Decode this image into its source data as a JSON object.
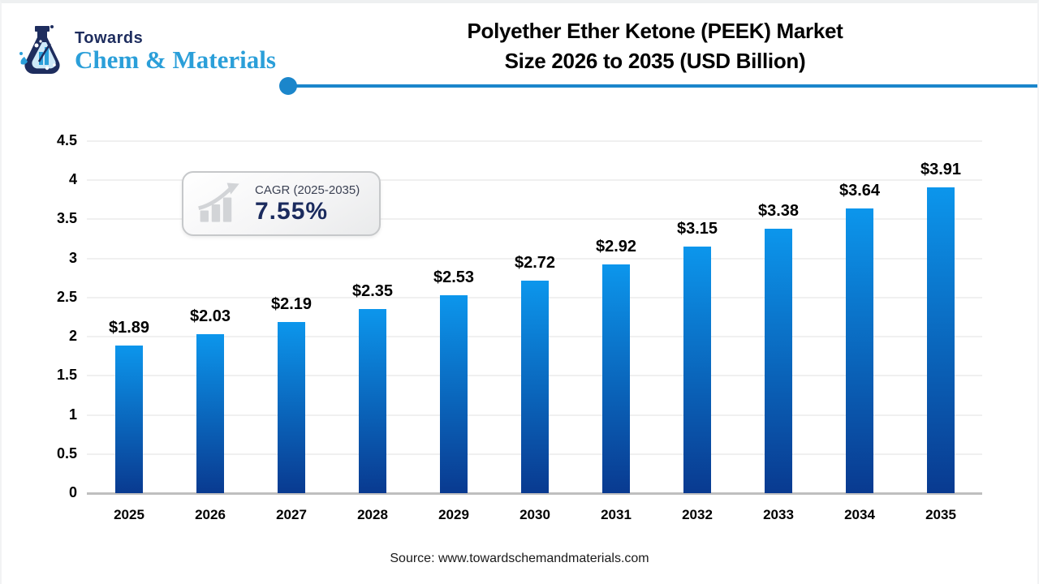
{
  "logo": {
    "line1": "Towards",
    "line2": "Chem & Materials",
    "line1_color": "#1e2d5e",
    "line2_color": "#2b9fd9",
    "flask_icon": "flask-icon"
  },
  "header": {
    "title_line1": "Polyether Ether Ketone (PEEK) Market",
    "title_line2": "Size 2026 to 2035 (USD Billion)",
    "accent_color": "#1b86cb"
  },
  "cagr_badge": {
    "icon": "growth-chart-icon",
    "label": "CAGR (2025-2035)",
    "value": "7.55%",
    "value_color": "#1b2b5e"
  },
  "chart_data": {
    "type": "bar",
    "title": "Polyether Ether Ketone (PEEK) Market Size 2026 to 2035 (USD Billion)",
    "categories": [
      "2025",
      "2026",
      "2027",
      "2028",
      "2029",
      "2030",
      "2031",
      "2032",
      "2033",
      "2034",
      "2035"
    ],
    "values": [
      1.89,
      2.03,
      2.19,
      2.35,
      2.53,
      2.72,
      2.92,
      3.15,
      3.38,
      3.64,
      3.91
    ],
    "value_labels": [
      "$1.89",
      "$2.03",
      "$2.19",
      "$2.35",
      "$2.53",
      "$2.72",
      "$2.92",
      "$3.15",
      "$3.38",
      "$3.64",
      "$3.91"
    ],
    "xlabel": "",
    "ylabel": "",
    "ylim": [
      0,
      4.5
    ],
    "yticks": [
      4.5,
      4,
      3.5,
      3,
      2.5,
      2,
      1.5,
      1,
      0.5,
      0
    ],
    "grid": true,
    "legend": "none",
    "bar_color_top": "#0C96EC",
    "bar_color_bottom": "#093A90"
  },
  "footer": {
    "source": "Source: www.towardschemandmaterials.com"
  }
}
